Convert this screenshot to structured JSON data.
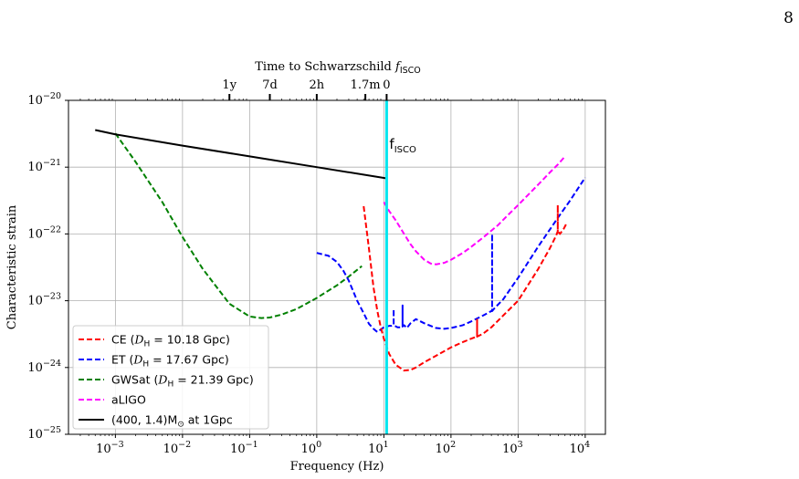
{
  "page_number": "8",
  "chart_data": {
    "type": "line",
    "xscale": "log",
    "yscale": "log",
    "xlim": [
      0.0002,
      20000
    ],
    "ylim": [
      1e-25,
      1e-20
    ],
    "xlabel": "Frequency (Hz)",
    "ylabel": "Characteristic strain",
    "grid": true,
    "legend_position": "lower-left",
    "x_tick_labels": [
      {
        "base": "10",
        "exp": "−3",
        "value": 0.001
      },
      {
        "base": "10",
        "exp": "−2",
        "value": 0.01
      },
      {
        "base": "10",
        "exp": "−1",
        "value": 0.1
      },
      {
        "base": "10",
        "exp": "0",
        "value": 1
      },
      {
        "base": "10",
        "exp": "1",
        "value": 10
      },
      {
        "base": "10",
        "exp": "2",
        "value": 100
      },
      {
        "base": "10",
        "exp": "3",
        "value": 1000
      },
      {
        "base": "10",
        "exp": "4",
        "value": 10000
      }
    ],
    "y_tick_labels": [
      {
        "base": "10",
        "exp": "−25",
        "value": 1e-25
      },
      {
        "base": "10",
        "exp": "−24",
        "value": 1e-24
      },
      {
        "base": "10",
        "exp": "−23",
        "value": 1e-23
      },
      {
        "base": "10",
        "exp": "−22",
        "value": 1e-22
      },
      {
        "base": "10",
        "exp": "−21",
        "value": 1e-21
      },
      {
        "base": "10",
        "exp": "−20",
        "value": 1e-20
      }
    ],
    "top_axis": {
      "title_text": "Time to Schwarzschild ",
      "title_math": "f",
      "title_sub": "ISCO",
      "ticks": [
        {
          "label": "1y",
          "frequency": 0.05
        },
        {
          "label": "7d",
          "frequency": 0.2
        },
        {
          "label": "2h",
          "frequency": 1.0
        },
        {
          "label": "1.7m",
          "frequency": 5.3
        },
        {
          "label": "0",
          "frequency": 11.0
        }
      ]
    },
    "vline": {
      "x": 11.0,
      "color": "#00e5ee",
      "label_main": "f",
      "label_sub": "ISCO",
      "label_y": 2.2e-21
    },
    "legend": [
      {
        "name": "CE (",
        "math": "D",
        "math_sub": "H",
        "rest": " = 10.18 Gpc)",
        "color": "#ff0000",
        "dash": true
      },
      {
        "name": "ET (",
        "math": "D",
        "math_sub": "H",
        "rest": " = 17.67 Gpc)",
        "color": "#0000ff",
        "dash": true
      },
      {
        "name": "GWSat (",
        "math": "D",
        "math_sub": "H",
        "rest": " = 21.39 Gpc)",
        "color": "#008000",
        "dash": true
      },
      {
        "name": "aLIGO",
        "math": "",
        "math_sub": "",
        "rest": "",
        "color": "#ff00ff",
        "dash": true
      },
      {
        "name": "(400, 1.4)M",
        "math": "",
        "math_sub": "⊙",
        "rest": " at 1Gpc",
        "color": "#000000",
        "dash": false
      }
    ],
    "series": [
      {
        "key": "gwsat",
        "color": "#008000",
        "dashed": true,
        "x": [
          0.001,
          0.002,
          0.005,
          0.01,
          0.02,
          0.05,
          0.1,
          0.15,
          0.2,
          0.3,
          0.5,
          1.0,
          2.0,
          3.0,
          4.7
        ],
        "y": [
          3.2e-21,
          1.2e-21,
          3e-22,
          9e-23,
          3e-23,
          9e-24,
          5.8e-24,
          5.5e-24,
          5.6e-24,
          6.2e-24,
          7.5e-24,
          1.1e-23,
          1.7e-23,
          2.3e-23,
          3.3e-23
        ]
      },
      {
        "key": "black",
        "color": "#000000",
        "dashed": false,
        "x": [
          0.0005,
          0.001,
          0.01,
          0.1,
          1,
          11
        ],
        "y": [
          3.6e-21,
          3.1e-21,
          2.1e-21,
          1.45e-21,
          1e-21,
          6.8e-22
        ]
      },
      {
        "key": "et",
        "color": "#0000ff",
        "dashed": true,
        "x": [
          1.0,
          1.5,
          2.0,
          2.5,
          3.0,
          4.0,
          5.0,
          6.0,
          7.0,
          8.0,
          10.0,
          12.0,
          13.0,
          14.0,
          14.0,
          14.0,
          16.0,
          18.0,
          19.0,
          19.0,
          19.0,
          20.0,
          22.0,
          25.0,
          30.0,
          40.0,
          60.0,
          80.0,
          100.0,
          150.0,
          200.0,
          300.0,
          400.0,
          410.0,
          410.0,
          410.0,
          450.0,
          600.0,
          1000.0,
          2000.0,
          4000.0,
          6000.0,
          10000.0
        ],
        "y": [
          5.2e-23,
          4.7e-23,
          3.8e-23,
          2.8e-23,
          2e-23,
          1e-23,
          6.5e-24,
          4.5e-24,
          3.8e-24,
          3.4e-24,
          4e-24,
          4.2e-24,
          4.2e-24,
          4.3e-24,
          7.5e-24,
          4.3e-24,
          4e-24,
          4e-24,
          4.1e-24,
          8.5e-24,
          4.1e-24,
          4.3e-24,
          3.9e-24,
          4.6e-24,
          5.3e-24,
          4.6e-24,
          3.9e-24,
          3.8e-24,
          3.9e-24,
          4.3e-24,
          4.9e-24,
          6e-24,
          7e-24,
          7e-24,
          1e-22,
          7e-24,
          7.8e-24,
          1.05e-23,
          2.2e-23,
          6.5e-23,
          1.8e-22,
          3.2e-22,
          7e-22
        ]
      },
      {
        "key": "aligo",
        "color": "#ff00ff",
        "dashed": true,
        "x": [
          10,
          12,
          15,
          20,
          25,
          30,
          40,
          50,
          60,
          80,
          100,
          150,
          200,
          300,
          500,
          700,
          1000,
          1500,
          2000,
          3000,
          4000,
          5000
        ],
        "y": [
          3e-22,
          2.2e-22,
          1.6e-22,
          1e-22,
          7e-23,
          5.5e-23,
          4.1e-23,
          3.6e-23,
          3.5e-23,
          3.7e-23,
          4.1e-23,
          5.2e-23,
          6.4e-23,
          8.8e-23,
          1.35e-22,
          1.9e-22,
          2.7e-22,
          4.1e-22,
          5.5e-22,
          8.4e-22,
          1.12e-21,
          1.45e-21
        ]
      },
      {
        "key": "ce",
        "color": "#ff0000",
        "dashed": true,
        "x": [
          5.0,
          6.0,
          7.0,
          8.0,
          9.0,
          10.0,
          12.0,
          15.0,
          20.0,
          25.0,
          30.0,
          40.0,
          60.0,
          100.0,
          150.0,
          200.0,
          240.0,
          245.0,
          245.0,
          245.0,
          300.0,
          400.0,
          600.0,
          1000.0,
          1500.0,
          2000.0,
          3000.0,
          3700.0,
          3900.0,
          3900.0,
          3900.0,
          4200.0,
          4800.0,
          5200.0
        ],
        "y": [
          2.6e-22,
          6e-23,
          1.6e-23,
          7e-24,
          4e-24,
          2.7e-24,
          1.6e-24,
          1.1e-24,
          9e-25,
          9.2e-25,
          1e-24,
          1.2e-24,
          1.5e-24,
          2e-24,
          2.4e-24,
          2.7e-24,
          2.9e-24,
          2.9e-24,
          5.2e-24,
          2.9e-24,
          3.2e-24,
          4e-24,
          6e-24,
          1e-23,
          1.9e-23,
          3e-23,
          6.2e-23,
          9.5e-23,
          1.1e-22,
          2.7e-22,
          1.1e-22,
          1e-22,
          1.2e-22,
          1.4e-22
        ]
      }
    ]
  }
}
